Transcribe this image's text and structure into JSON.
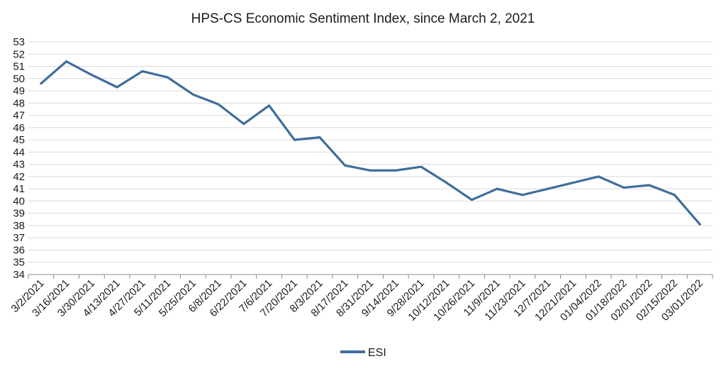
{
  "chart_data": {
    "type": "line",
    "title": "HPS-CS Economic Sentiment Index, since March 2, 2021",
    "xlabel": "",
    "ylabel": "",
    "ylim": [
      34,
      53
    ],
    "grid": "horizontal",
    "legend_position": "bottom",
    "categories": [
      "3/2/2021",
      "3/16/2021",
      "3/30/2021",
      "4/13/2021",
      "4/27/2021",
      "5/11/2021",
      "5/25/2021",
      "6/8/2021",
      "6/22/2021",
      "7/6/2021",
      "7/20/2021",
      "8/3/2021",
      "8/17/2021",
      "8/31/2021",
      "9/14/2021",
      "9/28/2021",
      "10/12/2021",
      "10/26/2021",
      "11/9/2021",
      "11/23/2021",
      "12/7/2021",
      "12/21/2021",
      "01/04/2022",
      "01/18/2022",
      "02/01/2022",
      "02/15/2022",
      "03/01/2022"
    ],
    "yticks": [
      34,
      35,
      36,
      37,
      38,
      39,
      40,
      41,
      42,
      43,
      44,
      45,
      46,
      47,
      48,
      49,
      50,
      51,
      52,
      53
    ],
    "series": [
      {
        "name": "ESI",
        "color": "#3f6e9b",
        "values": [
          49.6,
          51.4,
          50.3,
          49.3,
          50.6,
          50.1,
          48.7,
          47.9,
          46.3,
          47.8,
          45.0,
          45.2,
          42.9,
          42.5,
          42.5,
          42.8,
          41.5,
          40.1,
          41.0,
          40.5,
          41.0,
          41.5,
          42.0,
          41.1,
          41.3,
          40.5,
          38.1
        ]
      }
    ]
  },
  "colors": {
    "grid": "#d9d9d9",
    "axis": "#8c8c8c",
    "text": "#1a1a1a"
  }
}
